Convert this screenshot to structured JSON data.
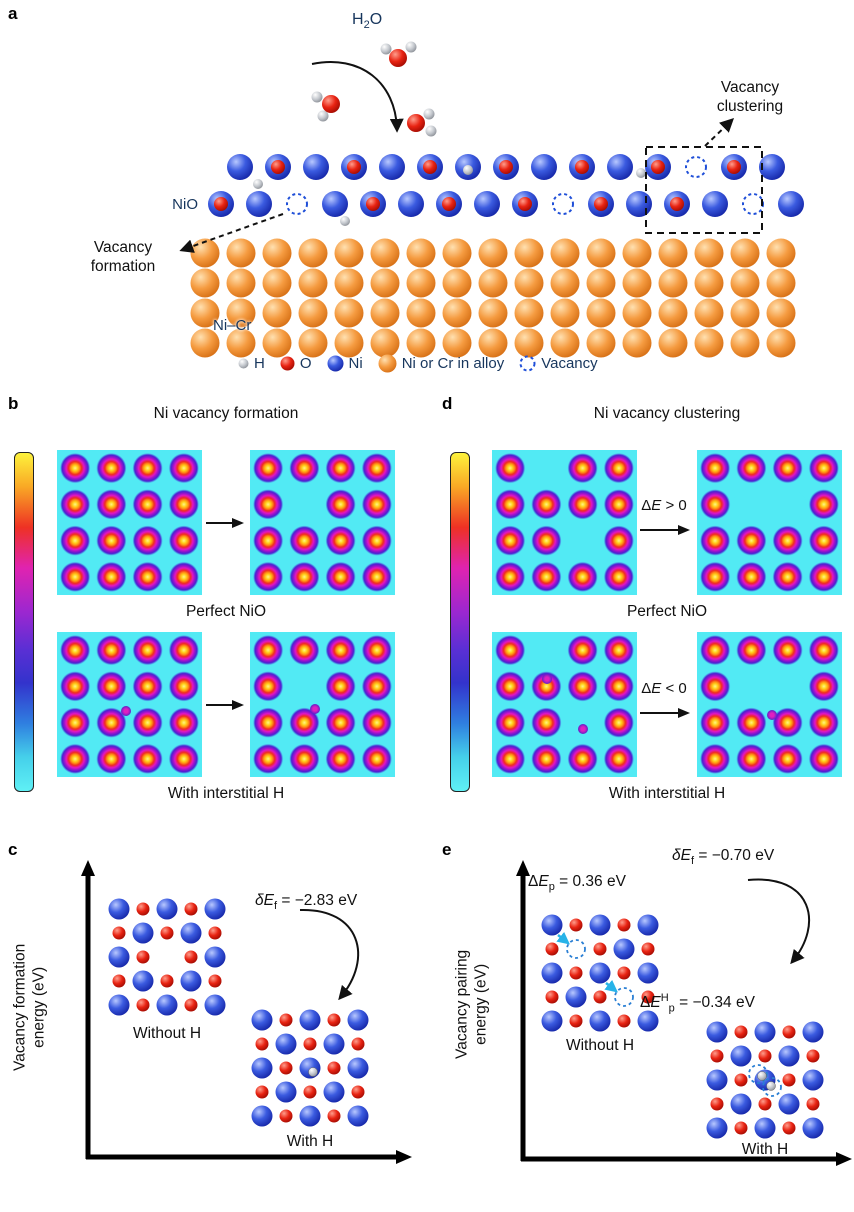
{
  "panel_a": {
    "label": "a",
    "h2o": {
      "pre": "H",
      "sub": "2",
      "post": "O"
    },
    "nio_label": "NiO",
    "alloy_label": "Ni–Cr",
    "annotation_clustering": "Vacancy clustering",
    "annotation_formation": "Vacancy formation",
    "legend": {
      "h": "H",
      "o": "O",
      "ni": "Ni",
      "alloy": "Ni or Cr in alloy",
      "vacancy": "Vacancy"
    }
  },
  "panel_b": {
    "label": "b",
    "title": "Ni vacancy formation",
    "caption_middle": "Perfect NiO",
    "caption_bottom": "With interstitial H"
  },
  "panel_d": {
    "label": "d",
    "title": "Ni vacancy clustering",
    "caption_middle": "Perfect NiO",
    "caption_bottom": "With interstitial H",
    "arrow_top_label": {
      "pre": "Δ",
      "e": "E",
      "post": " > 0"
    },
    "arrow_bottom_label": {
      "pre": "Δ",
      "e": "E",
      "post": " < 0"
    }
  },
  "panel_c": {
    "label": "c",
    "ylabel_line1": "Vacancy formation",
    "ylabel_line2": "energy (eV)",
    "energy_label": {
      "pre": "δ",
      "e": "E",
      "sub": "f",
      "post": " = −2.83 eV"
    },
    "without_h": "Without H",
    "with_h": "With H"
  },
  "panel_e": {
    "label": "e",
    "ylabel_line1": "Vacancy pairing",
    "ylabel_line2": "energy (eV)",
    "pairing_label": {
      "pre": "Δ",
      "e": "E",
      "sub": "p",
      "post": " = 0.36 eV"
    },
    "formation_label": {
      "pre": "δ",
      "e": "E",
      "sub": "f",
      "post": " = −0.70 eV"
    },
    "pairing_h_label": {
      "pre": "Δ",
      "e": "E",
      "sup": "H",
      "sub": "p",
      "post": " = −0.34 eV"
    },
    "without_h": "Without H",
    "with_h": "With H"
  },
  "colors": {
    "text_navy": "#17365d",
    "o_red": "#d42a1e",
    "ni_blue": "#2643d9",
    "alloy_orange": "#ef8b2a",
    "h_gray": "#bfc3c9",
    "vacancy_dash_blue": "#1f4fd8",
    "density_background_cyan": "#52eaf4"
  }
}
